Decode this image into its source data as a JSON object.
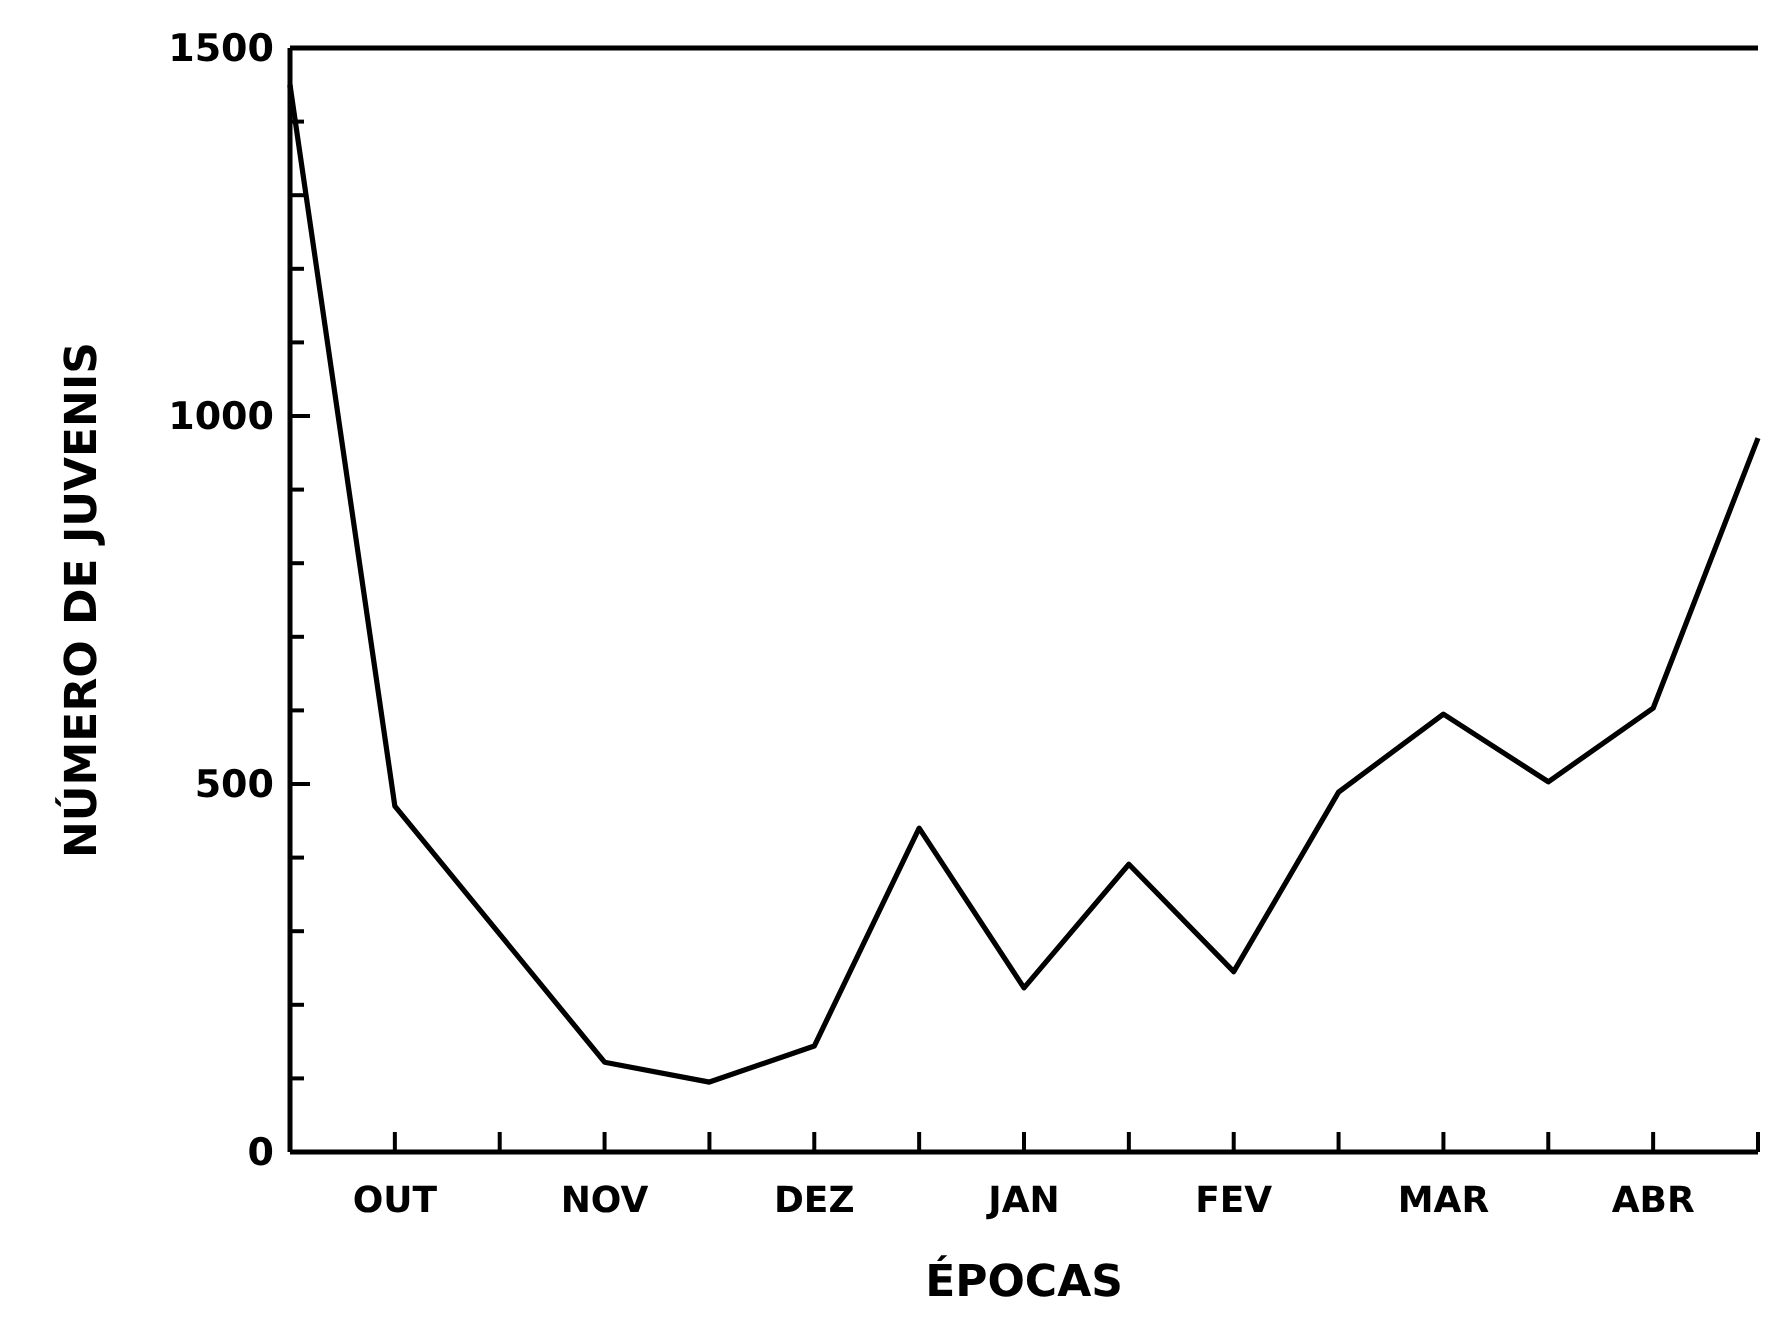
{
  "chart_data": {
    "type": "line",
    "xlabel": "ÉPOCAS",
    "ylabel": "NÚMERO DE JUVENIS",
    "categories": [
      null,
      "OUT",
      null,
      "NOV",
      null,
      "DEZ",
      null,
      "JAN",
      null,
      "FEV",
      null,
      "MAR",
      null,
      "ABR",
      null
    ],
    "series": [
      {
        "color": "#000000",
        "values": [
          1450,
          470,
          296,
          122,
          95,
          144,
          440,
          223,
          391,
          245,
          489,
          595,
          503,
          603,
          970
        ]
      }
    ],
    "ylim": [
      0,
      1500
    ],
    "yticks": [
      0,
      {
        "value": 100,
        "label": null
      },
      {
        "value": 200,
        "label": null
      },
      {
        "value": 300,
        "label": null
      },
      {
        "value": 400,
        "label": null
      },
      500,
      {
        "value": 600,
        "label": null
      },
      {
        "value": 700,
        "label": null
      },
      {
        "value": 800,
        "label": null
      },
      {
        "value": 900,
        "label": null
      },
      1000,
      {
        "value": 1100,
        "label": null
      },
      {
        "value": 1200,
        "label": null
      },
      {
        "value": 1300,
        "label": null
      },
      {
        "value": 1400,
        "label": null
      },
      1500
    ],
    "grid": false,
    "marker": "none",
    "line_style": "solid"
  }
}
